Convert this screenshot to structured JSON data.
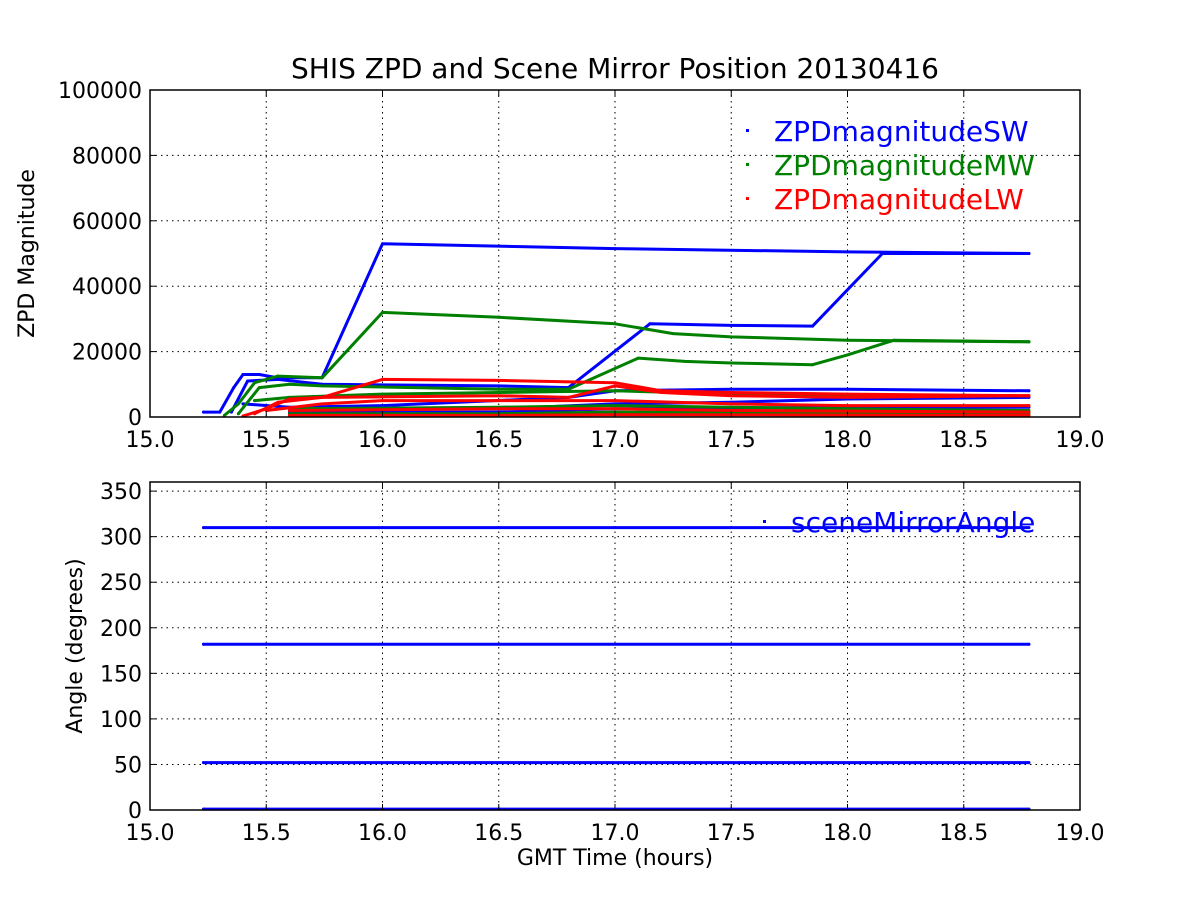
{
  "figure_title": "SHIS ZPD and Scene Mirror Position 20130416",
  "chart_data": [
    {
      "type": "scatter",
      "ylabel": "ZPD Magnitude",
      "xlabel": "",
      "xlim": [
        15.0,
        19.0
      ],
      "ylim": [
        0,
        100000
      ],
      "xticks": [
        "15.0",
        "15.5",
        "16.0",
        "16.5",
        "17.0",
        "17.5",
        "18.0",
        "18.5",
        "19.0"
      ],
      "yticks": [
        "0",
        "20000",
        "40000",
        "60000",
        "80000",
        "100000"
      ],
      "grid": true,
      "legend_position": "top-right",
      "series": [
        {
          "name": "ZPDmagnitudeSW",
          "color": "#0000ff",
          "traces": [
            [
              [
                15.23,
                1500
              ],
              [
                15.3,
                1500
              ],
              [
                15.36,
                9000
              ],
              [
                15.4,
                13000
              ],
              [
                15.47,
                13000
              ],
              [
                15.55,
                12000
              ],
              [
                15.74,
                12000
              ],
              [
                16.0,
                53000
              ],
              [
                17.0,
                51500
              ],
              [
                18.0,
                50500
              ],
              [
                18.78,
                50000
              ]
            ],
            [
              [
                15.35,
                1500
              ],
              [
                15.42,
                11000
              ],
              [
                15.55,
                11500
              ],
              [
                15.74,
                10000
              ],
              [
                16.5,
                9500
              ],
              [
                16.8,
                9000
              ],
              [
                17.15,
                28500
              ],
              [
                17.5,
                28000
              ],
              [
                17.85,
                27800
              ],
              [
                18.15,
                50000
              ],
              [
                18.78,
                50000
              ]
            ],
            [
              [
                15.4,
                4000
              ],
              [
                15.6,
                3000
              ],
              [
                16.0,
                3500
              ],
              [
                16.8,
                6000
              ],
              [
                17.0,
                8000
              ],
              [
                17.5,
                8500
              ],
              [
                18.0,
                8500
              ],
              [
                18.78,
                8000
              ]
            ],
            [
              [
                15.6,
                2500
              ],
              [
                16.5,
                2500
              ],
              [
                17.0,
                4000
              ],
              [
                17.5,
                4500
              ],
              [
                18.0,
                5500
              ],
              [
                18.78,
                6000
              ]
            ],
            [
              [
                15.6,
                1500
              ],
              [
                16.5,
                1500
              ],
              [
                17.0,
                2500
              ],
              [
                18.0,
                3000
              ],
              [
                18.78,
                3000
              ]
            ]
          ]
        },
        {
          "name": "ZPDmagnitudeMW",
          "color": "#008000",
          "traces": [
            [
              [
                15.32,
                500
              ],
              [
                15.38,
                4000
              ],
              [
                15.45,
                10500
              ],
              [
                15.55,
                12500
              ],
              [
                15.74,
                12000
              ],
              [
                16.0,
                32000
              ],
              [
                16.5,
                30500
              ],
              [
                17.0,
                28500
              ],
              [
                17.25,
                25500
              ],
              [
                17.5,
                24500
              ],
              [
                18.0,
                23500
              ],
              [
                18.78,
                23000
              ]
            ],
            [
              [
                15.38,
                1000
              ],
              [
                15.47,
                9000
              ],
              [
                15.6,
                10000
              ],
              [
                15.74,
                9500
              ],
              [
                16.5,
                8500
              ],
              [
                16.8,
                8500
              ],
              [
                17.1,
                18000
              ],
              [
                17.3,
                17000
              ],
              [
                17.5,
                16500
              ],
              [
                17.85,
                16000
              ],
              [
                18.0,
                19000
              ],
              [
                18.2,
                23500
              ],
              [
                18.78,
                23000
              ]
            ],
            [
              [
                15.45,
                5000
              ],
              [
                15.6,
                6000
              ],
              [
                16.0,
                7000
              ],
              [
                16.5,
                7500
              ],
              [
                17.0,
                8000
              ],
              [
                17.5,
                7000
              ],
              [
                18.0,
                6500
              ],
              [
                18.78,
                6500
              ]
            ],
            [
              [
                15.6,
                2500
              ],
              [
                16.5,
                3000
              ],
              [
                17.0,
                3500
              ],
              [
                17.5,
                3000
              ],
              [
                18.0,
                2500
              ],
              [
                18.78,
                2000
              ]
            ],
            [
              [
                15.6,
                1000
              ],
              [
                16.5,
                1000
              ],
              [
                17.0,
                1500
              ],
              [
                18.0,
                1200
              ],
              [
                18.78,
                1000
              ]
            ]
          ]
        },
        {
          "name": "ZPDmagnitudeLW",
          "color": "#ff0000",
          "traces": [
            [
              [
                15.4,
                300
              ],
              [
                15.5,
                2500
              ],
              [
                15.6,
                5500
              ],
              [
                15.74,
                6000
              ],
              [
                16.0,
                11500
              ],
              [
                16.5,
                11200
              ],
              [
                17.0,
                10500
              ],
              [
                17.2,
                8000
              ],
              [
                17.5,
                7500
              ],
              [
                18.0,
                7000
              ],
              [
                18.78,
                6500
              ]
            ],
            [
              [
                15.45,
                1000
              ],
              [
                15.55,
                4500
              ],
              [
                15.74,
                6000
              ],
              [
                16.5,
                6500
              ],
              [
                16.8,
                6000
              ],
              [
                17.0,
                9500
              ],
              [
                17.2,
                7500
              ],
              [
                17.5,
                6500
              ],
              [
                18.0,
                6000
              ],
              [
                18.78,
                6500
              ]
            ],
            [
              [
                15.5,
                2000
              ],
              [
                15.74,
                4000
              ],
              [
                16.0,
                5000
              ],
              [
                16.5,
                5000
              ],
              [
                17.0,
                5000
              ],
              [
                17.5,
                4000
              ],
              [
                18.0,
                3500
              ],
              [
                18.78,
                3500
              ]
            ],
            [
              [
                15.6,
                2000
              ],
              [
                16.5,
                2500
              ],
              [
                17.0,
                2500
              ],
              [
                17.5,
                2000
              ],
              [
                18.0,
                1800
              ],
              [
                18.78,
                1500
              ]
            ],
            [
              [
                15.6,
                500
              ],
              [
                16.5,
                500
              ],
              [
                17.0,
                700
              ],
              [
                18.0,
                600
              ],
              [
                18.78,
                500
              ]
            ]
          ]
        }
      ]
    },
    {
      "type": "scatter",
      "ylabel": "Angle (degrees)",
      "xlabel": "GMT Time (hours)",
      "xlim": [
        15.0,
        19.0
      ],
      "ylim": [
        0,
        360
      ],
      "xticks": [
        "15.0",
        "15.5",
        "16.0",
        "16.5",
        "17.0",
        "17.5",
        "18.0",
        "18.5",
        "19.0"
      ],
      "yticks": [
        "0",
        "50",
        "100",
        "150",
        "200",
        "250",
        "300",
        "350"
      ],
      "grid": true,
      "legend_position": "top-right",
      "series": [
        {
          "name": "sceneMirrorAngle",
          "color": "#0000ff",
          "traces": [
            [
              [
                15.23,
                310
              ],
              [
                18.78,
                310
              ]
            ],
            [
              [
                15.23,
                182
              ],
              [
                18.78,
                182
              ]
            ],
            [
              [
                15.23,
                52
              ],
              [
                18.78,
                52
              ]
            ],
            [
              [
                15.23,
                1
              ],
              [
                18.78,
                1
              ]
            ]
          ]
        }
      ]
    }
  ]
}
